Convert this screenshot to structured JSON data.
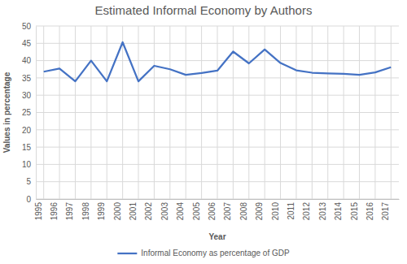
{
  "chart_data": {
    "type": "line",
    "title": "Estimated Informal Economy by Authors",
    "x_label": "Year",
    "y_label": "Values in percentage",
    "categories": [
      "1995",
      "1996",
      "1997",
      "1998",
      "1999",
      "2000",
      "2001",
      "2002",
      "2003",
      "2004",
      "2005",
      "2006",
      "2007",
      "2008",
      "2009",
      "2010",
      "2011",
      "2012",
      "2013",
      "2014",
      "2015",
      "2016",
      "2017"
    ],
    "series": [
      {
        "name": "Informal Economy as percentage of GDP",
        "color": "#4472c4",
        "values": [
          36.8,
          37.7,
          34.0,
          40.0,
          34.0,
          45.3,
          34.0,
          38.5,
          37.5,
          35.9,
          36.4,
          37.1,
          42.6,
          39.2,
          43.2,
          39.3,
          37.2,
          36.5,
          36.3,
          36.2,
          35.9,
          36.6,
          38.1
        ]
      }
    ],
    "ylim": [
      0,
      50
    ],
    "yticks": [
      0,
      5,
      10,
      15,
      20,
      25,
      30,
      35,
      40,
      45,
      50
    ],
    "grid": true,
    "legend": "bottom"
  }
}
